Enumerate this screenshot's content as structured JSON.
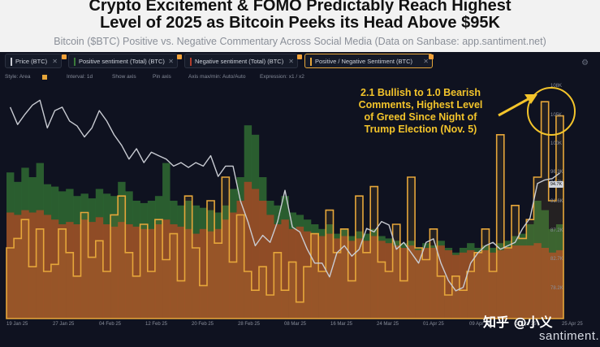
{
  "header": {
    "title_line1": "Crypto Excitement & FOMO Predictably Reach Highest",
    "title_line2": "Level of 2025 as Bitcoin Peeks its Head Above $95K",
    "subtitle": "Bitcoin ($BTC) Positive vs. Negative Commentary Across Social Media (Data on Sanbase: app.santiment.net)"
  },
  "legend": [
    {
      "label": "Price (BTC)",
      "color": "#c9ccd3"
    },
    {
      "label": "Positive sentiment (Total) (BTC)",
      "color": "#3a7a3a"
    },
    {
      "label": "Negative sentiment (Total) (BTC)",
      "color": "#b13d2c"
    },
    {
      "label": "Positive / Negative Sentiment (BTC)",
      "color": "#e6a63a"
    }
  ],
  "toolbar": {
    "style": "Style: Area",
    "interval": "Interval: 1d",
    "show_axis": "Show axis",
    "pin_axis": "Pin axis",
    "axis_max_min": "Axis max/min: Auto/Auto",
    "expression": "Expression: x1 / x2"
  },
  "annotation": {
    "lines": [
      "2.1 Bullish to 1.0 Bearish",
      "Comments, Highest Level",
      "of Greed Since Night of",
      "Trump Election (Nov. 5)"
    ],
    "color": "#f3c42b"
  },
  "price_badge": "94.7K",
  "watermark": "知乎 @小义",
  "brand": "santiment.",
  "colors": {
    "positive": "#3a7a3a",
    "negative": "#b13d2c",
    "ratio_line": "#e6a63a",
    "price": "#c9ccd3"
  },
  "chart_data": {
    "type": "area",
    "x_ticks": [
      "19 Jan 25",
      "27 Jan 25",
      "04 Feb 25",
      "12 Feb 25",
      "20 Feb 25",
      "28 Feb 25",
      "08 Mar 25",
      "16 Mar 25",
      "24 Mar 25",
      "01 Apr 25",
      "09 Apr 25",
      "17 Apr 25",
      "25 Apr 25"
    ],
    "y_ticks": [
      "108K",
      "105K",
      "100K",
      "96.3K",
      "94.7K",
      "91.6K",
      "87.2K",
      "82.7K",
      "78.2K"
    ],
    "price_ylim": [
      74000,
      108000
    ],
    "series": [
      {
        "name": "Price (BTC)",
        "values": [
          104500,
          102000,
          103500,
          104800,
          105500,
          101500,
          104000,
          104500,
          102500,
          101800,
          100200,
          101500,
          104000,
          102500,
          100500,
          99000,
          97000,
          98500,
          96500,
          98000,
          97500,
          97000,
          96000,
          96500,
          95800,
          96500,
          96000,
          97500,
          94500,
          96000,
          96000,
          91000,
          88000,
          84500,
          86000,
          85000,
          88000,
          92500,
          87200,
          86500,
          84000,
          82000,
          82000,
          80000,
          83500,
          84500,
          83000,
          84000,
          87000,
          86500,
          88000,
          87500,
          84000,
          85000,
          83500,
          82000,
          85000,
          85500,
          82000,
          79500,
          78000,
          78500,
          82000,
          83500,
          84500,
          85000,
          84000,
          84500,
          85000,
          87000,
          88500,
          93500,
          94000,
          94200,
          95000
        ]
      },
      {
        "name": "Positive sentiment (Total) (BTC)",
        "values": [
          0.62,
          0.58,
          0.64,
          0.6,
          0.66,
          0.57,
          0.56,
          0.54,
          0.55,
          0.52,
          0.53,
          0.51,
          0.55,
          0.53,
          0.52,
          0.58,
          0.54,
          0.5,
          0.49,
          0.5,
          0.52,
          0.66,
          0.5,
          0.48,
          0.5,
          0.48,
          0.47,
          0.46,
          0.45,
          0.48,
          0.55,
          0.6,
          0.82,
          0.78,
          0.6,
          0.5,
          0.48,
          0.52,
          0.45,
          0.44,
          0.42,
          0.4,
          0.38,
          0.4,
          0.36,
          0.38,
          0.35,
          0.37,
          0.36,
          0.38,
          0.35,
          0.34,
          0.33,
          0.32,
          0.33,
          0.3,
          0.32,
          0.31,
          0.33,
          0.3,
          0.28,
          0.3,
          0.32,
          0.3,
          0.31,
          0.3,
          0.32,
          0.33,
          0.35,
          0.36,
          0.4,
          0.5,
          0.46,
          0.38,
          0.4
        ]
      },
      {
        "name": "Negative sentiment (Total) (BTC)",
        "values": [
          0.45,
          0.44,
          0.46,
          0.45,
          0.46,
          0.44,
          0.42,
          0.4,
          0.41,
          0.4,
          0.42,
          0.41,
          0.43,
          0.4,
          0.39,
          0.41,
          0.4,
          0.39,
          0.38,
          0.38,
          0.4,
          0.42,
          0.4,
          0.39,
          0.38,
          0.36,
          0.38,
          0.37,
          0.38,
          0.42,
          0.45,
          0.5,
          0.58,
          0.55,
          0.5,
          0.44,
          0.4,
          0.42,
          0.38,
          0.39,
          0.37,
          0.36,
          0.35,
          0.36,
          0.34,
          0.35,
          0.33,
          0.34,
          0.33,
          0.35,
          0.33,
          0.32,
          0.31,
          0.3,
          0.31,
          0.29,
          0.3,
          0.3,
          0.31,
          0.29,
          0.27,
          0.28,
          0.29,
          0.28,
          0.29,
          0.28,
          0.29,
          0.3,
          0.31,
          0.31,
          0.31,
          0.32,
          0.3,
          0.28,
          0.29
        ]
      },
      {
        "name": "Positive / Negative Sentiment (BTC)",
        "values": [
          0.3,
          0.34,
          0.42,
          0.22,
          0.38,
          0.2,
          0.23,
          0.38,
          0.28,
          0.18,
          0.45,
          0.26,
          0.33,
          0.2,
          0.44,
          0.52,
          0.28,
          0.18,
          0.4,
          0.2,
          0.42,
          0.25,
          0.36,
          0.16,
          0.52,
          0.3,
          0.14,
          0.5,
          0.32,
          0.6,
          0.24,
          0.44,
          0.2,
          0.12,
          0.22,
          0.1,
          0.28,
          0.12,
          0.24,
          0.07,
          0.22,
          0.36,
          0.2,
          0.46,
          0.28,
          0.38,
          0.16,
          0.52,
          0.28,
          0.56,
          0.24,
          0.2,
          0.4,
          0.16,
          0.6,
          0.3,
          0.25,
          0.38,
          0.18,
          0.1,
          0.18,
          0.12,
          0.2,
          0.28,
          0.38,
          0.2,
          0.78,
          0.3,
          0.48,
          0.34,
          0.42,
          0.6,
          0.92,
          0.5,
          0.86
        ]
      }
    ]
  }
}
